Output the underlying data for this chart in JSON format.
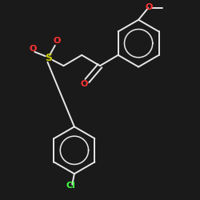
{
  "background_color": "#1a1a1a",
  "bond_color": "#e8e8e8",
  "atom_colors": {
    "O": "#ff3333",
    "S": "#cccc00",
    "Cl": "#44ff44",
    "C": "#e8e8e8"
  },
  "figsize": [
    2.5,
    2.5
  ],
  "dpi": 100,
  "lw": 1.4,
  "font_size": 7
}
